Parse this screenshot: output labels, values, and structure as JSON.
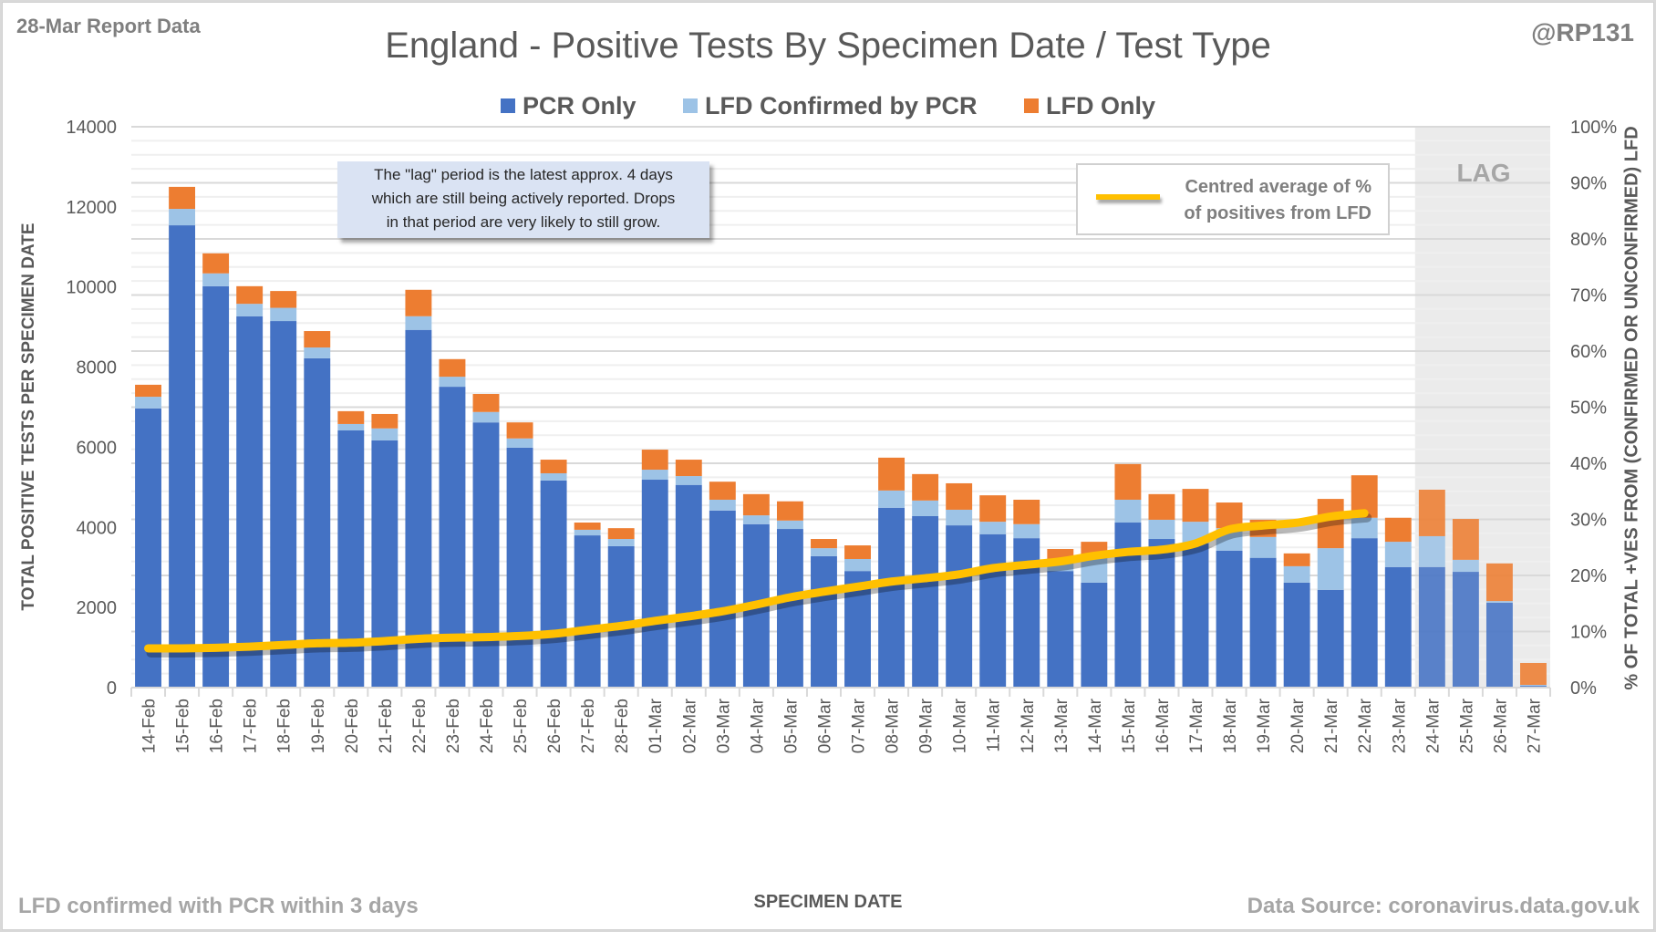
{
  "header": {
    "report_label": "28-Mar Report Data",
    "handle": "@RP131"
  },
  "annotations": {
    "note_lines": [
      "The \"lag\" period is the latest approx. 4 days",
      "which are still being actively reported. Drops",
      "in that period are very likely to still grow."
    ],
    "lag_label": "LAG",
    "line_legend_lines": [
      "Centred average of %",
      "of positives from LFD"
    ],
    "footnote_left": "LFD confirmed with PCR within 3 days",
    "footnote_right": "Data Source: coronavirus.data.gov.uk"
  },
  "colors": {
    "pcr_only": "#4472c4",
    "lfd_confirmed": "#9dc3e6",
    "lfd_only": "#ed7d31",
    "avg_line": "#ffc000",
    "lag_shade": "#ebebeb"
  },
  "chart_data": {
    "type": "bar",
    "stacked": true,
    "title": "England - Positive Tests By Specimen Date / Test Type",
    "xlabel": "SPECIMEN DATE",
    "ylabel": "TOTAL POSITIVE TESTS PER SPECIMEN DATE",
    "y2label": "% OF TOTAL +VES FROM (CONFIRMED OR UNCONFIRMED) LFD",
    "ylim": [
      0,
      14000
    ],
    "yticks": [
      0,
      2000,
      4000,
      6000,
      8000,
      10000,
      12000,
      14000
    ],
    "y2lim": [
      0,
      100
    ],
    "y2ticks": [
      "0%",
      "10%",
      "20%",
      "30%",
      "40%",
      "50%",
      "60%",
      "70%",
      "80%",
      "90%",
      "100%"
    ],
    "grid": true,
    "legend_position": "top-center",
    "lag_categories": [
      "24-Mar",
      "25-Mar",
      "26-Mar",
      "27-Mar"
    ],
    "categories": [
      "14-Feb",
      "15-Feb",
      "16-Feb",
      "17-Feb",
      "18-Feb",
      "19-Feb",
      "20-Feb",
      "21-Feb",
      "22-Feb",
      "23-Feb",
      "24-Feb",
      "25-Feb",
      "26-Feb",
      "27-Feb",
      "28-Feb",
      "01-Mar",
      "02-Mar",
      "03-Mar",
      "04-Mar",
      "05-Mar",
      "06-Mar",
      "07-Mar",
      "08-Mar",
      "09-Mar",
      "10-Mar",
      "11-Mar",
      "12-Mar",
      "13-Mar",
      "14-Mar",
      "15-Mar",
      "16-Mar",
      "17-Mar",
      "18-Mar",
      "19-Mar",
      "20-Mar",
      "21-Mar",
      "22-Mar",
      "23-Mar",
      "24-Mar",
      "25-Mar",
      "26-Mar",
      "27-Mar"
    ],
    "series": [
      {
        "name": "PCR Only",
        "axis": "left",
        "values": [
          6970,
          11540,
          10020,
          9270,
          9150,
          8220,
          6420,
          6170,
          8930,
          7510,
          6620,
          5990,
          5170,
          3800,
          3530,
          5190,
          5060,
          4420,
          4080,
          3960,
          3280,
          2910,
          4490,
          4280,
          4050,
          3830,
          3730,
          2910,
          2620,
          4120,
          3710,
          3600,
          3420,
          3240,
          2620,
          2440,
          3730,
          3010,
          3010,
          2890,
          2120,
          45
        ]
      },
      {
        "name": "LFD Confirmed by PCR",
        "axis": "left",
        "values": [
          290,
          410,
          320,
          310,
          330,
          270,
          160,
          300,
          340,
          250,
          260,
          230,
          180,
          140,
          180,
          250,
          220,
          270,
          220,
          210,
          200,
          300,
          430,
          390,
          390,
          310,
          350,
          300,
          700,
          570,
          480,
          540,
          560,
          520,
          410,
          1040,
          510,
          630,
          770,
          300,
          40,
          23
        ]
      },
      {
        "name": "LFD Only",
        "axis": "left",
        "values": [
          300,
          550,
          500,
          440,
          420,
          410,
          320,
          360,
          660,
          440,
          450,
          400,
          340,
          180,
          270,
          500,
          410,
          450,
          530,
          480,
          230,
          340,
          820,
          660,
          660,
          660,
          610,
          250,
          320,
          890,
          640,
          820,
          640,
          430,
          320,
          1230,
          1060,
          600,
          1160,
          1020,
          940,
          547
        ]
      },
      {
        "name": "Centred average of % of positives from LFD",
        "axis": "right",
        "type": "line",
        "values": [
          7.0,
          7.0,
          7.1,
          7.3,
          7.6,
          7.9,
          8.0,
          8.3,
          8.7,
          8.9,
          9.0,
          9.2,
          9.6,
          10.3,
          11.0,
          11.9,
          12.7,
          13.6,
          14.8,
          16.1,
          17.1,
          18.0,
          18.9,
          19.5,
          20.2,
          21.3,
          21.9,
          22.5,
          23.5,
          24.2,
          24.6,
          25.7,
          28.2,
          28.9,
          29.4,
          30.5,
          31.1,
          null,
          null,
          null,
          null,
          null
        ]
      }
    ]
  }
}
